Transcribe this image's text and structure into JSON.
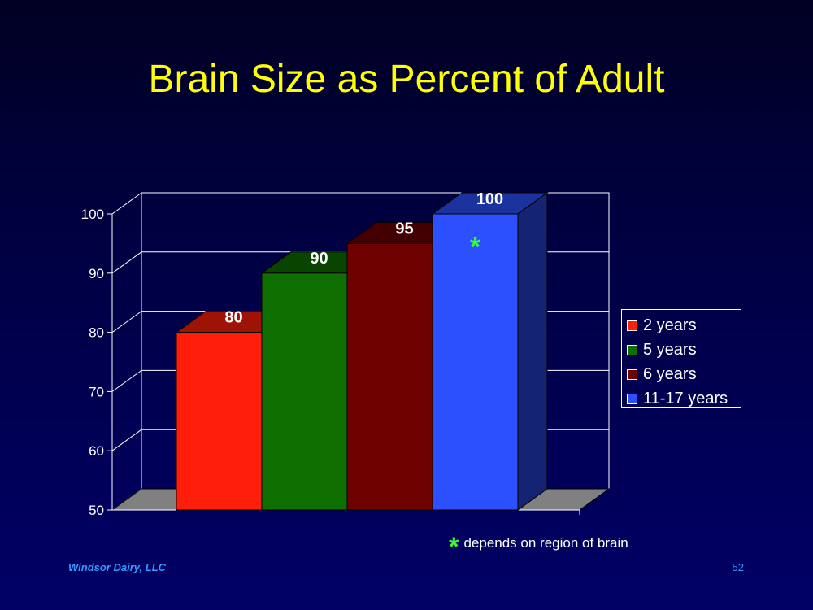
{
  "slide": {
    "title": "Brain Size as Percent of Adult",
    "footnote_symbol": "*",
    "footnote_text": "depends on region of brain",
    "footer_left": "Windsor Dairy, LLC",
    "page_number": "52"
  },
  "chart_data": {
    "type": "bar",
    "title": "",
    "xlabel": "",
    "ylabel": "",
    "ylim": [
      50,
      100
    ],
    "yticks": [
      50,
      60,
      70,
      80,
      90,
      100
    ],
    "grid": true,
    "legend_position": "right",
    "series": [
      {
        "name": "2 years",
        "value": 80,
        "label": "80",
        "color": "#ff1e0a"
      },
      {
        "name": "5 years",
        "value": 90,
        "label": "90",
        "color": "#0f6e00"
      },
      {
        "name": "6 years",
        "value": 95,
        "label": "95",
        "color": "#6e0000"
      },
      {
        "name": "11-17 years",
        "value": 100,
        "label": "100",
        "color": "#2d50ff"
      }
    ],
    "annotations": [
      {
        "series": "11-17 years",
        "text": "*",
        "color": "#33ff33"
      }
    ]
  }
}
